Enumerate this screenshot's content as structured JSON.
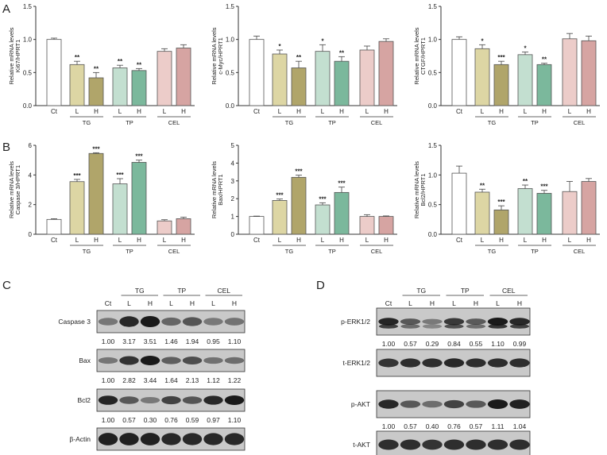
{
  "panel_labels": {
    "A": "A",
    "B": "B",
    "C": "C",
    "D": "D"
  },
  "chart_data": [
    {
      "type": "bar",
      "panel": "A",
      "title": "",
      "ylabel_top": "Relative mRNA levels",
      "ylabel_bottom": "Ki67/HPRT1",
      "ylim": [
        0,
        1.5
      ],
      "yticks": [
        "0.0",
        "0.5",
        "1.0",
        "1.5"
      ],
      "categories": [
        "Ct",
        "L",
        "H",
        "L",
        "H",
        "L",
        "H"
      ],
      "groups": [
        "TG",
        "TP",
        "CEL"
      ],
      "values": [
        1.0,
        0.62,
        0.42,
        0.57,
        0.53,
        0.82,
        0.87
      ],
      "errors": [
        0.02,
        0.05,
        0.08,
        0.04,
        0.03,
        0.04,
        0.05
      ],
      "significance": [
        "",
        "**",
        "**",
        "**",
        "**",
        "",
        ""
      ]
    },
    {
      "type": "bar",
      "panel": "A",
      "title": "",
      "ylabel_top": "Relative mRNA levels",
      "ylabel_bottom": "c-Myc/HPRT1",
      "ylim": [
        0,
        1.5
      ],
      "yticks": [
        "0.0",
        "0.5",
        "1.0",
        "1.5"
      ],
      "categories": [
        "Ct",
        "L",
        "H",
        "L",
        "H",
        "L",
        "H"
      ],
      "groups": [
        "TG",
        "TP",
        "CEL"
      ],
      "values": [
        1.0,
        0.78,
        0.57,
        0.82,
        0.67,
        0.84,
        0.97
      ],
      "errors": [
        0.05,
        0.06,
        0.1,
        0.1,
        0.07,
        0.06,
        0.04
      ],
      "significance": [
        "",
        "*",
        "**",
        "*",
        "**",
        "",
        ""
      ]
    },
    {
      "type": "bar",
      "panel": "A",
      "title": "",
      "ylabel_top": "Relative mRNA levels",
      "ylabel_bottom": "CTGF/HPRT1",
      "ylim": [
        0,
        1.5
      ],
      "yticks": [
        "0.0",
        "0.5",
        "1.0",
        "1.5"
      ],
      "categories": [
        "Ct",
        "L",
        "H",
        "L",
        "H",
        "L",
        "H"
      ],
      "groups": [
        "TG",
        "TP",
        "CEL"
      ],
      "values": [
        1.0,
        0.86,
        0.62,
        0.77,
        0.62,
        1.01,
        0.98
      ],
      "errors": [
        0.04,
        0.06,
        0.05,
        0.04,
        0.02,
        0.08,
        0.07
      ],
      "significance": [
        "",
        "*",
        "***",
        "*",
        "**",
        "",
        ""
      ]
    },
    {
      "type": "bar",
      "panel": "B",
      "title": "",
      "ylabel_top": "Relative mRNA levels",
      "ylabel_bottom": "Caspase 3/HPRT1",
      "ylim": [
        0,
        6
      ],
      "yticks": [
        "0",
        "2",
        "4",
        "6"
      ],
      "categories": [
        "Ct",
        "L",
        "H",
        "L",
        "H",
        "L",
        "H"
      ],
      "groups": [
        "TG",
        "TP",
        "CEL"
      ],
      "values": [
        1.0,
        3.55,
        5.45,
        3.4,
        4.85,
        0.9,
        1.05
      ],
      "errors": [
        0.05,
        0.15,
        0.05,
        0.35,
        0.15,
        0.08,
        0.1
      ],
      "significance": [
        "",
        "***",
        "***",
        "***",
        "***",
        "",
        ""
      ]
    },
    {
      "type": "bar",
      "panel": "B",
      "title": "",
      "ylabel_top": "Relative mRNA levels",
      "ylabel_bottom": "Bax/HPRT1",
      "ylim": [
        0,
        5
      ],
      "yticks": [
        "0",
        "1",
        "2",
        "3",
        "4",
        "5"
      ],
      "categories": [
        "Ct",
        "L",
        "H",
        "L",
        "H",
        "L",
        "H"
      ],
      "groups": [
        "TG",
        "TP",
        "CEL"
      ],
      "values": [
        1.0,
        1.9,
        3.2,
        1.65,
        2.35,
        1.0,
        1.0
      ],
      "errors": [
        0.02,
        0.08,
        0.12,
        0.12,
        0.3,
        0.1,
        0.03
      ],
      "significance": [
        "",
        "***",
        "***",
        "***",
        "***",
        "",
        ""
      ]
    },
    {
      "type": "bar",
      "panel": "B",
      "title": "",
      "ylabel_top": "Relative mRNA levels",
      "ylabel_bottom": "Bcl2/HPRT1",
      "ylim": [
        0,
        1.5
      ],
      "yticks": [
        "0.0",
        "0.5",
        "1.0",
        "1.5"
      ],
      "categories": [
        "Ct",
        "L",
        "H",
        "L",
        "H",
        "L",
        "H"
      ],
      "groups": [
        "TG",
        "TP",
        "CEL"
      ],
      "values": [
        1.03,
        0.71,
        0.41,
        0.77,
        0.69,
        0.72,
        0.89
      ],
      "errors": [
        0.12,
        0.05,
        0.07,
        0.06,
        0.05,
        0.17,
        0.05
      ],
      "significance": [
        "",
        "**",
        "***",
        "**",
        "***",
        "",
        ""
      ]
    }
  ],
  "colors": {
    "Ct": "#ffffff",
    "TG_L": "#ddd6a4",
    "TG_H": "#b0a56a",
    "TP_L": "#c3dfd0",
    "TP_H": "#7bb89c",
    "CEL_L": "#ecccc9",
    "CEL_H": "#d6a4a2",
    "edge": "#555555"
  },
  "blot_C": {
    "groups": [
      "TG",
      "TP",
      "CEL"
    ],
    "lanes": [
      "Ct",
      "L",
      "H",
      "L",
      "H",
      "L",
      "H"
    ],
    "rows": [
      {
        "label": "Caspase 3",
        "values": [
          "1.00",
          "3.17",
          "3.51",
          "1.46",
          "1.94",
          "0.95",
          "1.10"
        ]
      },
      {
        "label": "Bax",
        "values": [
          "1.00",
          "2.82",
          "3.44",
          "1.64",
          "2.13",
          "1.12",
          "1.22"
        ]
      },
      {
        "label": "Bcl2",
        "values": [
          "1.00",
          "0.57",
          "0.30",
          "0.76",
          "0.59",
          "0.97",
          "1.10"
        ]
      },
      {
        "label": "β-Actin",
        "values": []
      }
    ]
  },
  "blot_D": {
    "groups": [
      "TG",
      "TP",
      "CEL"
    ],
    "lanes": [
      "Ct",
      "L",
      "H",
      "L",
      "H",
      "L",
      "H"
    ],
    "rows": [
      {
        "label": "p-ERK1/2",
        "values": [
          "1.00",
          "0.57",
          "0.29",
          "0.84",
          "0.55",
          "1.10",
          "0.99"
        ]
      },
      {
        "label": "t-ERK1/2",
        "values": []
      },
      {
        "label": "p-AKT",
        "values": [
          "1.00",
          "0.57",
          "0.40",
          "0.76",
          "0.57",
          "1.11",
          "1.04"
        ]
      },
      {
        "label": "t-AKT",
        "values": []
      }
    ]
  }
}
